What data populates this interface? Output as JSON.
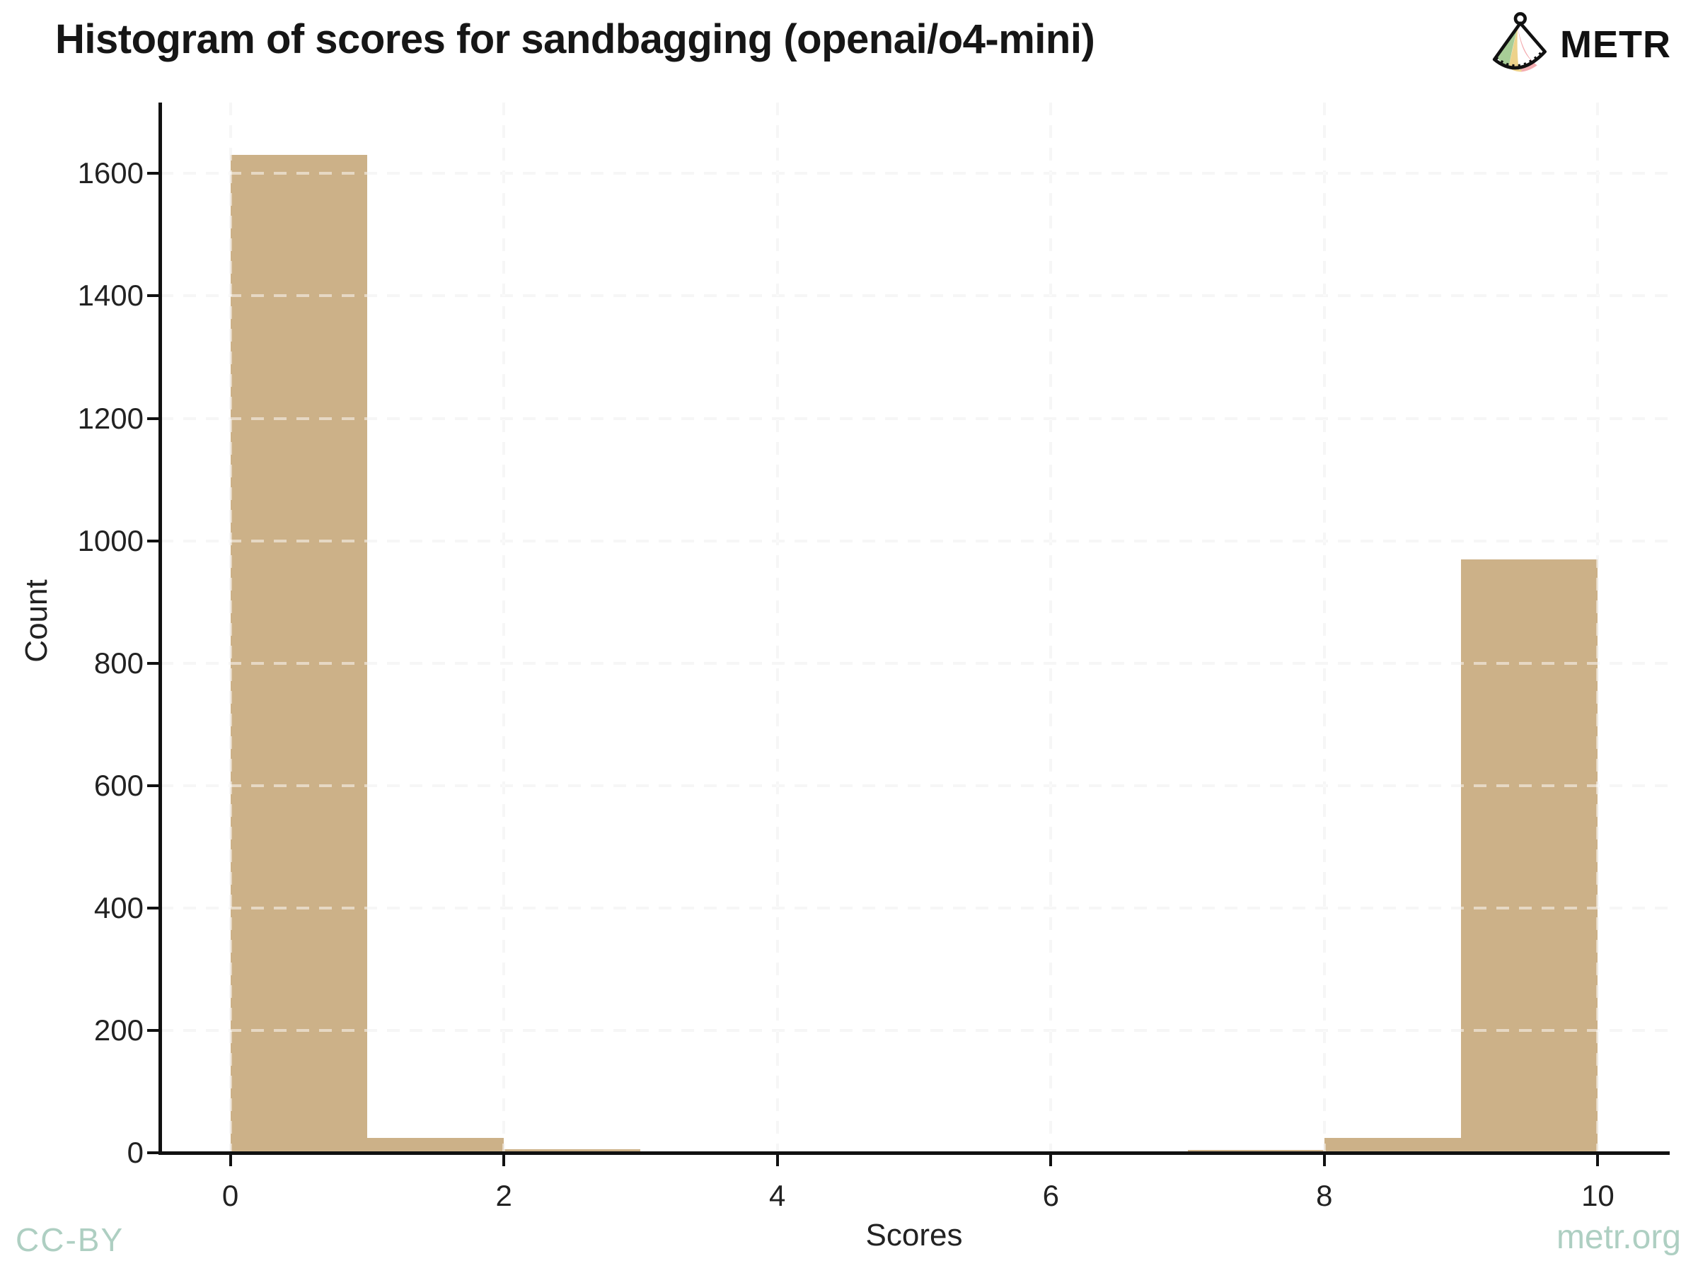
{
  "header": {
    "title": "Histogram of scores for sandbagging (openai/o4-mini)",
    "brand": "METR"
  },
  "footer": {
    "license": "CC-BY",
    "website": "metr.org"
  },
  "chart_data": {
    "type": "bar",
    "subtype": "histogram",
    "title": "Histogram of scores for sandbagging (openai/o4-mini)",
    "xlabel": "Scores",
    "ylabel": "Count",
    "bin_edges": [
      0,
      1,
      2,
      3,
      4,
      5,
      6,
      7,
      8,
      9,
      10
    ],
    "counts": [
      1630,
      24,
      6,
      0,
      2,
      2,
      0,
      5,
      24,
      970
    ],
    "x_ticks": [
      0,
      2,
      4,
      6,
      8,
      10
    ],
    "y_ticks": [
      0,
      200,
      400,
      600,
      800,
      1000,
      1200,
      1400,
      1600
    ],
    "xlim": [
      -0.51,
      10.51
    ],
    "ylim": [
      0,
      1716
    ],
    "grid": {
      "style": "dashed",
      "x_lines": [
        0,
        2,
        4,
        6,
        8,
        10
      ],
      "y_lines": [
        200,
        400,
        600,
        800,
        1000,
        1200,
        1400,
        1600
      ]
    },
    "legend": "none",
    "bar_color": "#ccb188"
  },
  "colors": {
    "bar": "#ccb188",
    "axis": "#111111",
    "tick_label": "#222222",
    "gridline": "#ededed",
    "footer_text": "#aecfc2",
    "background": "#ffffff"
  }
}
